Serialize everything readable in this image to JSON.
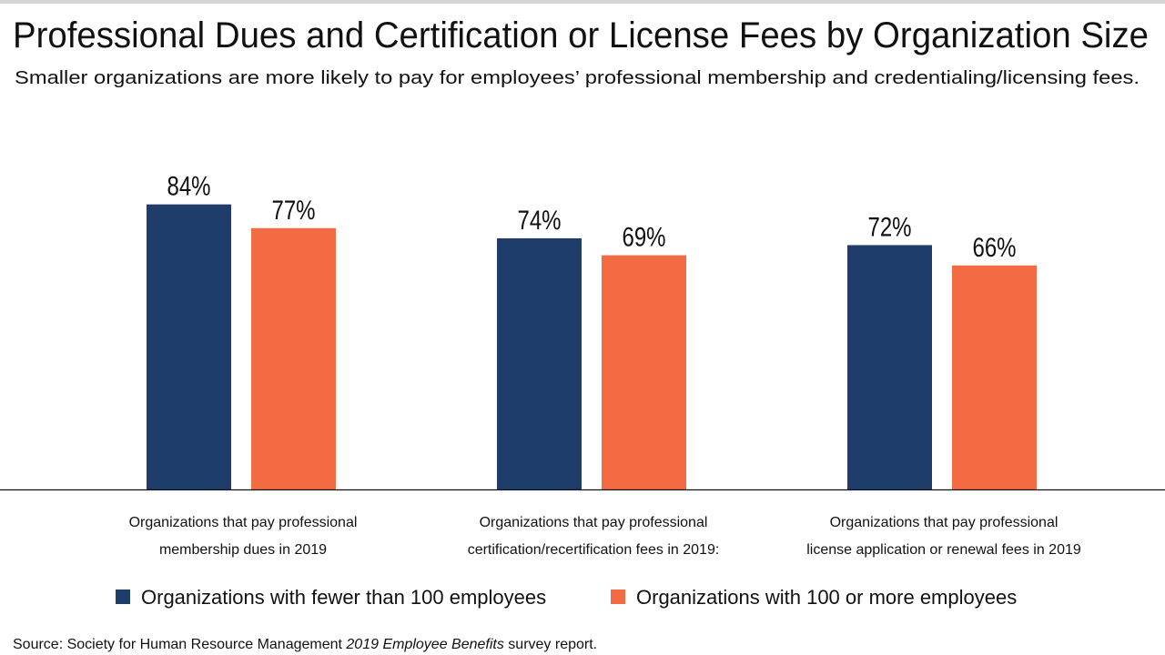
{
  "chart_data": {
    "type": "bar",
    "title": "Professional Dues and Certification or License Fees by Organization Size",
    "subtitle": "Smaller organizations are more likely to pay for employees’ professional membership and credentialing/licensing fees.",
    "categories": [
      [
        "Organizations that pay professional",
        "membership dues in 2019"
      ],
      [
        "Organizations that pay professional",
        "certification/recertification fees in 2019:"
      ],
      [
        "Organizations that pay professional",
        "license application or renewal fees in 2019"
      ]
    ],
    "series": [
      {
        "name": "Organizations with fewer than 100 employees",
        "color": "#1e3d6b",
        "values": [
          84,
          74,
          72
        ],
        "labels": [
          "84%",
          "74%",
          "72%"
        ]
      },
      {
        "name": "Organizations with 100 or more employees",
        "color": "#f26b43",
        "values": [
          77,
          69,
          66
        ],
        "labels": [
          "77%",
          "69%",
          "66%"
        ]
      }
    ],
    "ylim": [
      0,
      100
    ],
    "xlabel": "",
    "ylabel": "",
    "grid": false,
    "legend_placement": "bottom",
    "source": {
      "prefix": "Source: Society for Human Resource Management ",
      "italic": "2019 Employee Benefits",
      "suffix": " survey report."
    }
  }
}
